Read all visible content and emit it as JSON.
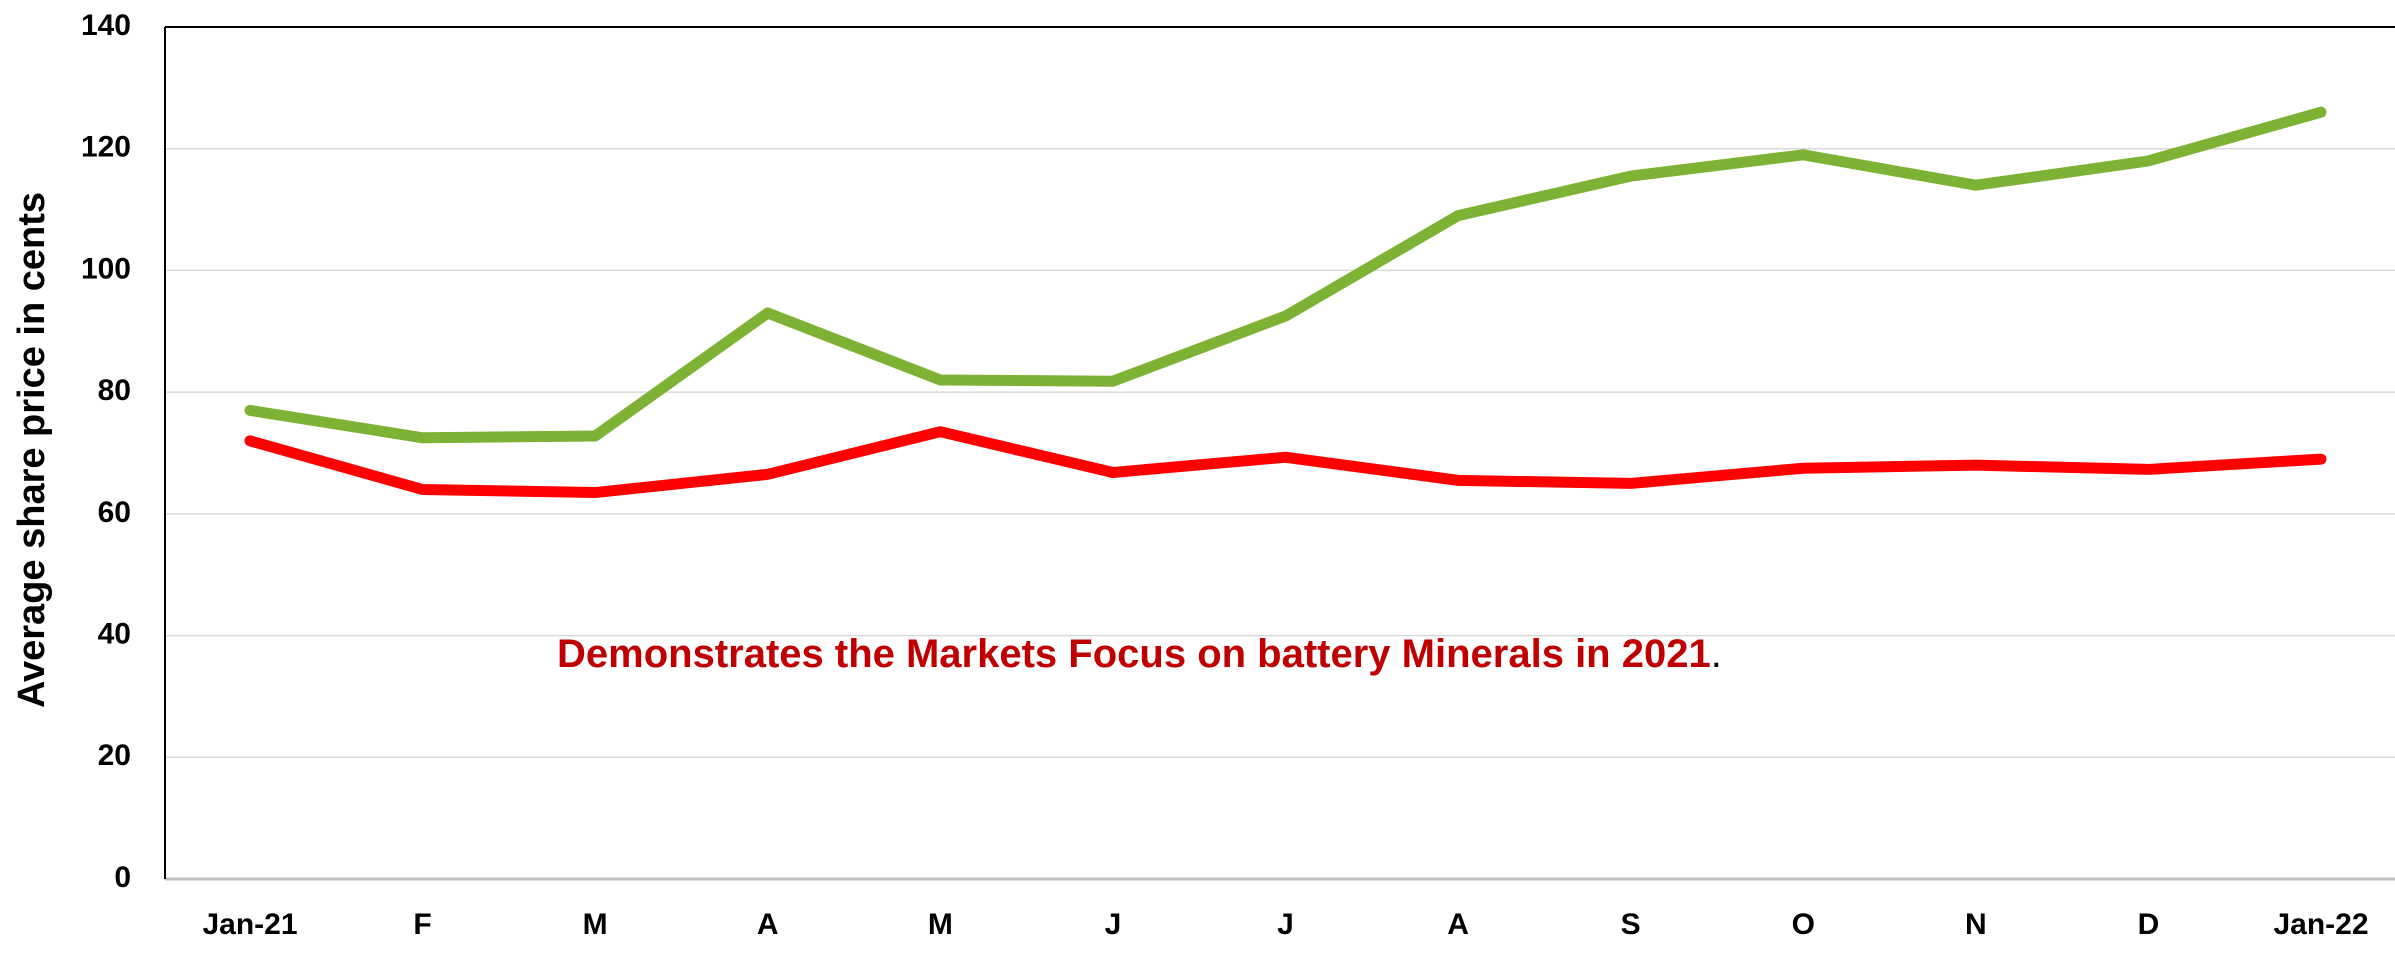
{
  "chart_data": {
    "type": "line",
    "y_label": "Average share price in cents",
    "annotations": [
      "Demonstrates the Markets Focus on battery Minerals in 2021",
      "."
    ],
    "categories": [
      "Jan-21",
      "F",
      "M",
      "A",
      "M",
      "J",
      "J",
      "A",
      "S",
      "O",
      "N",
      "D",
      "Jan-22"
    ],
    "series": [
      {
        "color": "#7db234",
        "values": [
          77,
          72.5,
          72.8,
          93,
          82,
          81.8,
          92.5,
          109,
          115.5,
          119,
          114,
          118,
          126
        ]
      },
      {
        "color": "#ff0000",
        "values": [
          72,
          64,
          63.5,
          66.5,
          73.5,
          66.8,
          69.3,
          65.5,
          65,
          67.5,
          68,
          67.3,
          69
        ]
      }
    ],
    "ylim": [
      0,
      140
    ],
    "yticks": [
      0,
      20,
      40,
      60,
      80,
      100,
      120,
      140
    ],
    "grid": true
  }
}
